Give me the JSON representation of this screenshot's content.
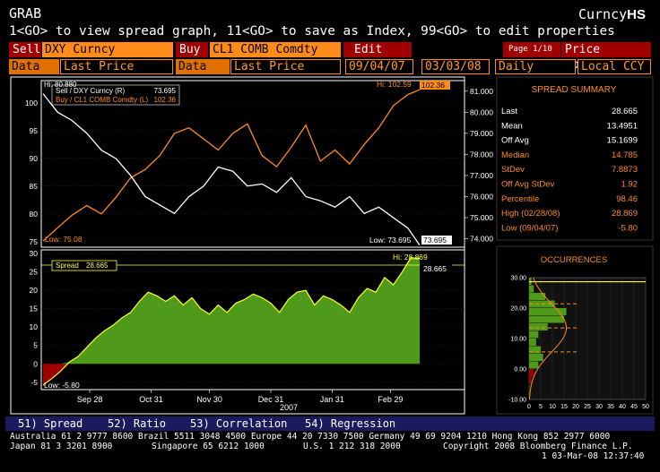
{
  "header": {
    "function": "GRAB",
    "title_prefix": "Curncy",
    "title_code": "HS",
    "instructions": "1<GO> to view spread graph, 11<GO> to save as Index, 99<GO> to edit properties"
  },
  "controls": {
    "sell_label": "Sell",
    "sell_ticker": "DXY Curncy",
    "buy_label": "Buy",
    "buy_ticker": "CL1 COMB Comdty",
    "edit_label": "Edit",
    "page_info": "Page 1/10",
    "mode": "Price Spread",
    "data_label_1": "Data",
    "data_field_1": "Last Price",
    "data_label_2": "Data",
    "data_field_2": "Last Price",
    "start_date": "09/04/07",
    "end_date": "03/03/08",
    "periodicity": "Daily",
    "currency": "Local CCY"
  },
  "colors": {
    "orange": "#ff8c1a",
    "dark_red": "#a00000",
    "green_fill": "#4f9a1a",
    "yellow_line": "#ffff30",
    "white_line": "#ffffff"
  },
  "chart_data": [
    {
      "type": "line",
      "legend": [
        "Sell / DXY Curncy (R)",
        "Buy / CL1 COMB Comdty (L)"
      ],
      "legend_values": [
        "73.695",
        "102.36"
      ],
      "annotations": {
        "sell_hi": "Hi: 80.880",
        "buy_hi": "Hi: 102.59",
        "buy_last": "102.36",
        "buy_low": "Low: 75.08",
        "sell_low": "Low: 73.695",
        "sell_last": "73.695"
      },
      "left_axis": {
        "ticks": [
          "100",
          "95",
          "90",
          "85",
          "80",
          "75"
        ],
        "ylim": [
          74,
          104
        ]
      },
      "right_axis": {
        "ticks": [
          "81.000",
          "80.000",
          "79.000",
          "78.000",
          "77.000",
          "76.000",
          "75.000",
          "74.000"
        ],
        "ylim": [
          73.6,
          81.5
        ]
      },
      "x": [
        0,
        5,
        10,
        15,
        20,
        25,
        30,
        35,
        40,
        45,
        50,
        55,
        60,
        65,
        70,
        75,
        80,
        85,
        90,
        95,
        100,
        105,
        110,
        115,
        120,
        125,
        129
      ],
      "series": [
        {
          "name": "Buy / CL1 COMB Comdty (L)",
          "axis": "left",
          "color": "#ff8c1a",
          "values": [
            75.1,
            77.5,
            79.8,
            81.5,
            80.0,
            83.0,
            86.5,
            88.0,
            90.5,
            94.5,
            95.5,
            93.5,
            91.5,
            94.5,
            96.2,
            90.5,
            88.5,
            92.0,
            96.0,
            89.5,
            91.5,
            89.0,
            92.5,
            95.5,
            99.5,
            101.5,
            102.36
          ]
        },
        {
          "name": "Sell / DXY Curncy (R)",
          "axis": "right",
          "color": "#ffffff",
          "values": [
            80.88,
            80.0,
            79.6,
            79.0,
            78.2,
            77.8,
            77.0,
            76.0,
            75.6,
            75.2,
            76.0,
            76.5,
            77.4,
            77.2,
            76.5,
            76.6,
            76.2,
            76.9,
            76.0,
            75.8,
            75.5,
            76.0,
            75.2,
            75.5,
            75.0,
            74.5,
            73.695
          ]
        }
      ]
    },
    {
      "type": "area",
      "legend": [
        "Spread"
      ],
      "legend_values": [
        "28.665"
      ],
      "annotations": {
        "hi": "Hi: 28.869",
        "last": "28.665",
        "low": "Low: -5.80"
      },
      "y_ticks": [
        "30",
        "25",
        "20",
        "15",
        "10",
        "5",
        "0",
        "-5"
      ],
      "ylim": [
        -7,
        31
      ],
      "x_ticks": [
        "Sep 28",
        "Oct 31",
        "Nov 30",
        "Dec 31",
        "Jan 31",
        "Feb 29"
      ],
      "x_year": "2007",
      "x": [
        0,
        3,
        6,
        9,
        12,
        15,
        18,
        21,
        24,
        27,
        30,
        33,
        36,
        39,
        42,
        45,
        48,
        51,
        54,
        57,
        60,
        63,
        66,
        69,
        72,
        75,
        78,
        81,
        84,
        87,
        90,
        93,
        96,
        99,
        102,
        105,
        108,
        111,
        114,
        117,
        120,
        123,
        126,
        129
      ],
      "values": [
        -5.8,
        -4.0,
        -2.0,
        0.5,
        2.0,
        4.5,
        7.0,
        9.0,
        10.5,
        12.5,
        14.0,
        17.0,
        19.5,
        18.5,
        17.0,
        18.5,
        16.0,
        18.0,
        15.0,
        13.5,
        16.0,
        14.0,
        16.5,
        17.5,
        19.0,
        18.0,
        16.5,
        14.0,
        17.5,
        19.5,
        20.0,
        16.0,
        18.5,
        17.5,
        16.0,
        14.0,
        18.0,
        20.5,
        19.5,
        23.5,
        21.5,
        25.0,
        28.869,
        28.665
      ]
    },
    {
      "type": "bar",
      "title": "OCCURRENCES",
      "orientation": "horizontal",
      "y_ticks": [
        "30.00",
        "20.00",
        "10.00",
        "0.00",
        "-10.00"
      ],
      "x_ticks": [
        "0",
        "5",
        "10",
        "15",
        "20",
        "25",
        "30",
        "35",
        "40",
        "45",
        "50"
      ],
      "ylim": [
        -10,
        30
      ],
      "xlim": [
        0,
        50
      ],
      "bins": [
        -5,
        -2.5,
        0,
        2.5,
        5,
        7.5,
        10,
        12.5,
        15,
        17.5,
        20,
        22.5,
        25,
        27.5
      ],
      "counts": [
        1,
        2,
        4,
        6,
        5,
        3,
        4,
        8,
        15,
        16,
        11,
        7,
        2,
        1
      ]
    }
  ],
  "summary": {
    "title": "SPREAD SUMMARY",
    "rows": [
      {
        "label": "Last",
        "value": "28.665",
        "color": "#ffffff"
      },
      {
        "label": "Mean",
        "value": "13.4951",
        "color": "#ffffff"
      },
      {
        "label": "Off Avg",
        "value": "15.1699",
        "color": "#ffffff"
      },
      {
        "label": "Median",
        "value": "14.785",
        "color": "#ff8c1a"
      },
      {
        "label": "StDev",
        "value": "7.8873",
        "color": "#ff8c1a"
      },
      {
        "label": "Off Avg StDev",
        "value": "1.92",
        "color": "#ff8c1a"
      },
      {
        "label": "Percentile",
        "value": "98.46",
        "color": "#ff8c1a"
      },
      {
        "label": "High (02/28/08)",
        "value": "28.869",
        "color": "#ff8c1a"
      },
      {
        "label": "Low (09/04/07)",
        "value": "-5.80",
        "color": "#ff8c1a"
      }
    ]
  },
  "function_tabs": [
    {
      "num": "51)",
      "label": "Spread"
    },
    {
      "num": "52)",
      "label": "Ratio"
    },
    {
      "num": "53)",
      "label": "Correlation"
    },
    {
      "num": "54)",
      "label": "Regression"
    }
  ],
  "footer": {
    "line1": "Australia 61 2 9777 8600 Brazil 5511 3048 4500 Europe 44 20 7330 7500 Germany 49 69 9204 1210 Hong Kong 852 2977 6000",
    "line2_left": "Japan 81 3 3201 8900",
    "line2_mid1": "Singapore 65 6212 1000",
    "line2_mid2": "U.S. 1 212 318 2000",
    "line2_right": "Copyright 2008 Bloomberg Finance L.P.",
    "line3": "1 03-Mar-08 12:37:40"
  }
}
